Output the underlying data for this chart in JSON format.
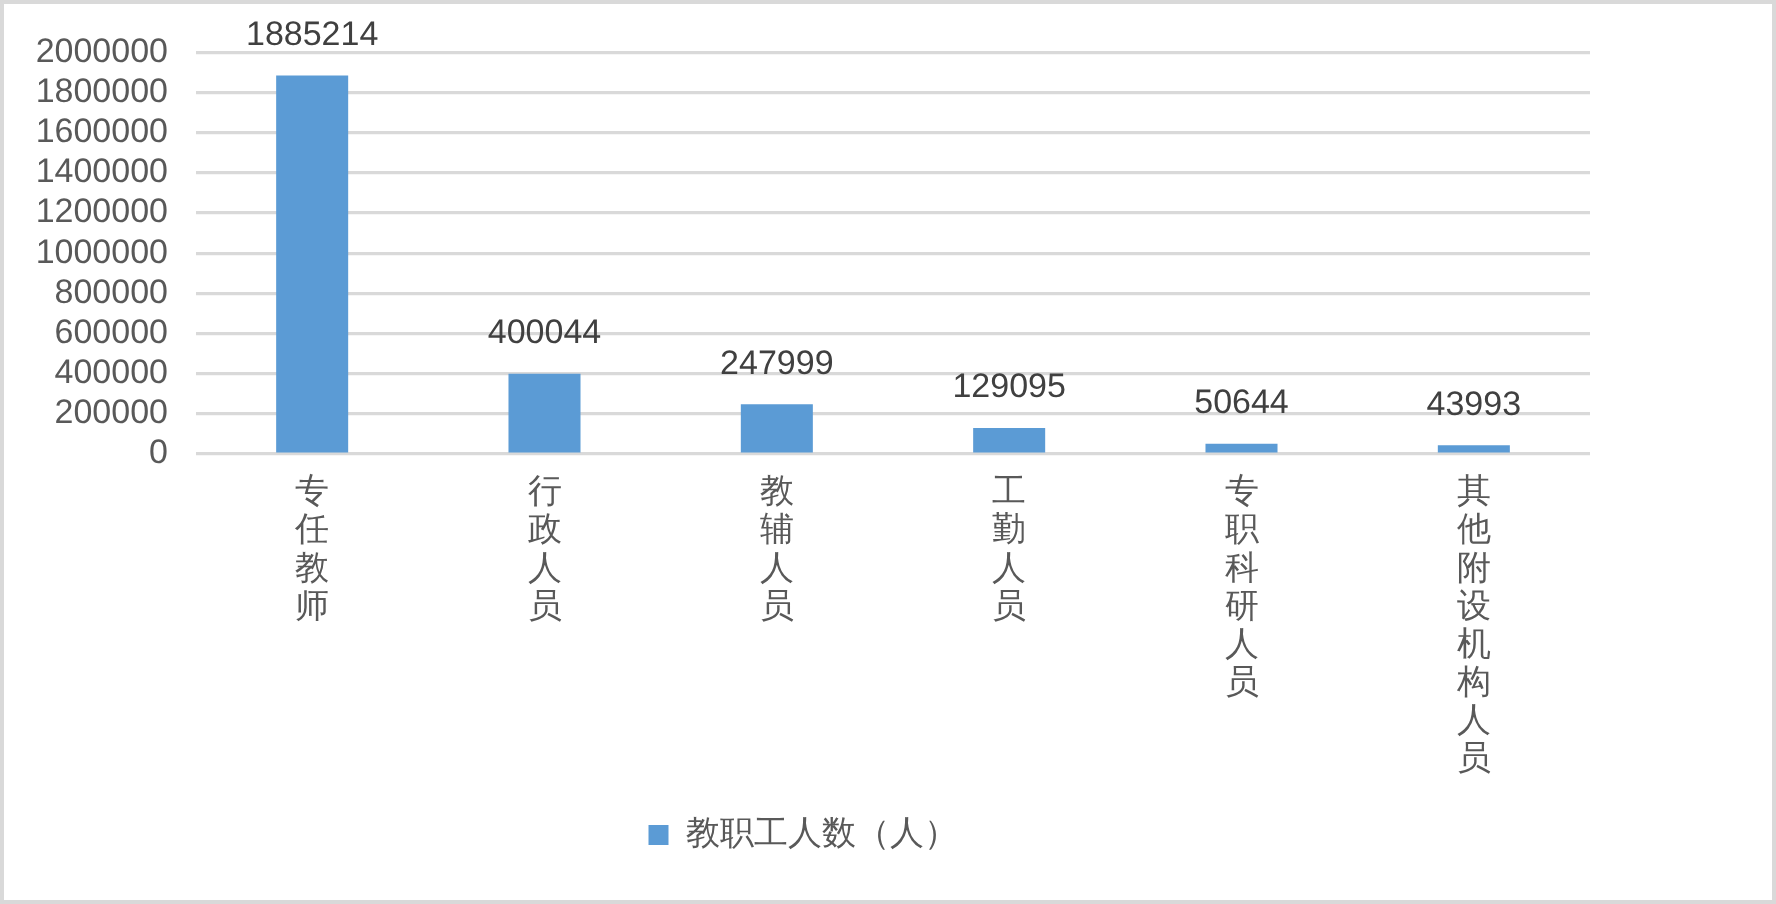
{
  "chart_data": {
    "type": "bar",
    "categories": [
      "专任教师",
      "行政人员",
      "教辅人员",
      "工勤人员",
      "专职科研人员",
      "其他附设机构人员"
    ],
    "series": [
      {
        "name": "教职工人数（人）",
        "color": "#5b9bd5",
        "values": [
          1885214,
          400044,
          247999,
          129095,
          50644,
          43993
        ]
      }
    ],
    "ylim": [
      0,
      2000000
    ],
    "yticks": [
      0,
      200000,
      400000,
      600000,
      800000,
      1000000,
      1200000,
      1400000,
      1600000,
      1800000,
      2000000
    ],
    "grid": "y",
    "legend": "bottom",
    "data_labels": true
  }
}
